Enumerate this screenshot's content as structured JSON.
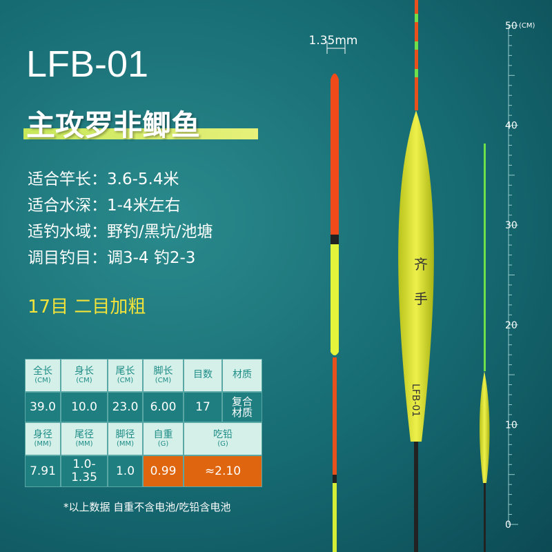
{
  "header": {
    "title": "LFB-01",
    "subtitle": "主攻罗非鲫鱼"
  },
  "specs": [
    "适合竿长：3.6-5.4米",
    "适合水深：1-4米左右",
    "适钓水域：野钓/黑坑/池塘",
    "调目钓目：调3-4 钓2-3"
  ],
  "highlight": "17目 二目加粗",
  "table": {
    "rows": [
      [
        {
          "name": "全长",
          "unit": "(CM)"
        },
        {
          "name": "身长",
          "unit": "(CM)"
        },
        {
          "name": "尾长",
          "unit": "(CM)"
        },
        {
          "name": "脚长",
          "unit": "(CM)"
        },
        {
          "name": "目数"
        },
        {
          "name": "材质"
        }
      ],
      [
        "39.0",
        "10.0",
        "23.0",
        "6.00",
        "17",
        "复合材质"
      ],
      [
        {
          "name": "身径",
          "unit": "(MM)"
        },
        {
          "name": "尾径",
          "unit": "(MM)"
        },
        {
          "name": "脚径",
          "unit": "(MM)"
        },
        {
          "name": "自重",
          "unit": "(G)"
        },
        {
          "name": "吃铅",
          "unit": "(G)"
        }
      ],
      [
        "7.91",
        "1.0-1.35",
        "1.0",
        "0.99",
        "≈2.10"
      ]
    ]
  },
  "footnote": "*以上数据 自重不含电池/吃铅含电池",
  "diagram": {
    "tip_width": "1.35mm",
    "float_marks": [
      "齐",
      "手"
    ],
    "float_label": "LFB-01"
  },
  "ruler": {
    "unit": "(CM)",
    "labels": [
      0,
      10,
      20,
      30,
      40,
      50
    ]
  }
}
